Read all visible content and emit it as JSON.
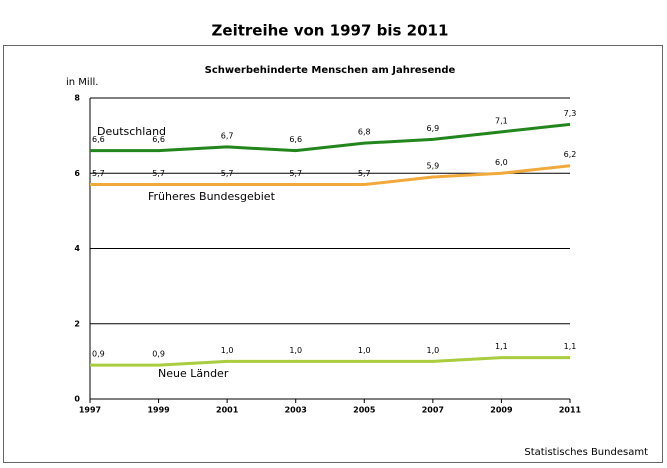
{
  "chart_data": {
    "type": "line",
    "title": "Zeitreihe von 1997 bis 2011",
    "subtitle": "Schwerbehinderte Menschen am Jahresende",
    "y_label": "in Mill.",
    "source": "Statistisches Bundesamt",
    "x": [
      1997,
      1999,
      2001,
      2003,
      2005,
      2007,
      2009,
      2011
    ],
    "xlim": [
      1997,
      2011
    ],
    "xticks": [
      1997,
      1999,
      2001,
      2003,
      2005,
      2007,
      2009,
      2011
    ],
    "ylim": [
      0,
      8
    ],
    "yticks": [
      0,
      2,
      4,
      6,
      8
    ],
    "grid": true,
    "series": [
      {
        "name": "Deutschland",
        "color": "#23861c",
        "values": [
          6.6,
          6.6,
          6.7,
          6.6,
          6.8,
          6.9,
          7.1,
          7.3
        ],
        "value_labels": [
          "6,6",
          "6,6",
          "6,7",
          "6,6",
          "6,8",
          "6,9",
          "7,1",
          "7,3"
        ]
      },
      {
        "name": "Früheres Bundesgebiet",
        "color": "#f2a93b",
        "values": [
          5.7,
          5.7,
          5.7,
          5.7,
          5.7,
          5.9,
          6.0,
          6.2
        ],
        "value_labels": [
          "5,7",
          "5,7",
          "5,7",
          "5,7",
          "5,7",
          "5,9",
          "6,0",
          "6,2"
        ]
      },
      {
        "name": "Neue Länder",
        "color": "#a9cd3f",
        "values": [
          0.9,
          0.9,
          1.0,
          1.0,
          1.0,
          1.0,
          1.1,
          1.1
        ],
        "value_labels": [
          "0,9",
          "0,9",
          "1,0",
          "1,0",
          "1,0",
          "1,0",
          "1,1",
          "1,1"
        ]
      }
    ]
  }
}
